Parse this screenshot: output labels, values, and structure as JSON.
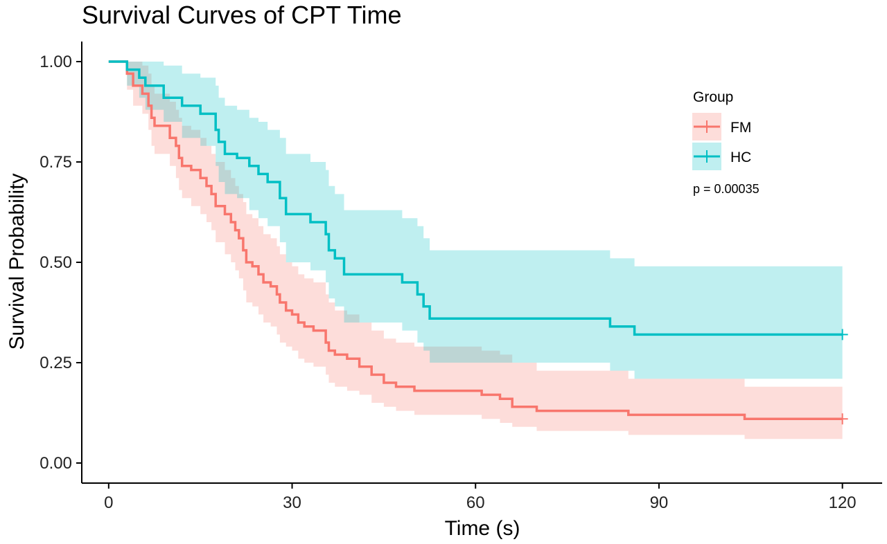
{
  "chart_data": {
    "type": "line",
    "subtype": "kaplan-meier survival curves with confidence bands",
    "title": "Survival Curves of CPT Time",
    "xlabel": "Time (s)",
    "ylabel": "Survival Probability",
    "xlim": [
      -4.4,
      126.5
    ],
    "ylim": [
      -0.05,
      1.05
    ],
    "xticks": [
      0,
      30,
      60,
      90,
      120
    ],
    "xtick_labels": [
      "0",
      "30",
      "60",
      "90",
      "120"
    ],
    "yticks": [
      0.0,
      0.25,
      0.5,
      0.75,
      1.0
    ],
    "ytick_labels": [
      "0.00",
      "0.25",
      "0.50",
      "0.75",
      "1.00"
    ],
    "grid": false,
    "legend": {
      "title": "Group",
      "position": "top-right"
    },
    "annotation": "p = 0.00035",
    "series": [
      {
        "name": "FM",
        "color": "#F8766D",
        "band_color": "#F8766D",
        "steps": [
          [
            0,
            1.0
          ],
          [
            3,
            0.97
          ],
          [
            4,
            0.94
          ],
          [
            5.5,
            0.92
          ],
          [
            6.5,
            0.89
          ],
          [
            7,
            0.86
          ],
          [
            7.5,
            0.84
          ],
          [
            9,
            0.84
          ],
          [
            10,
            0.81
          ],
          [
            11,
            0.79
          ],
          [
            11.5,
            0.76
          ],
          [
            12,
            0.74
          ],
          [
            13.5,
            0.73
          ],
          [
            15,
            0.71
          ],
          [
            16,
            0.69
          ],
          [
            16.8,
            0.67
          ],
          [
            17.5,
            0.64
          ],
          [
            19,
            0.62
          ],
          [
            20,
            0.6
          ],
          [
            20.7,
            0.58
          ],
          [
            21.3,
            0.56
          ],
          [
            22,
            0.53
          ],
          [
            22.5,
            0.5
          ],
          [
            23.5,
            0.49
          ],
          [
            24.5,
            0.47
          ],
          [
            25.3,
            0.45
          ],
          [
            26.5,
            0.44
          ],
          [
            27.5,
            0.42
          ],
          [
            28,
            0.4
          ],
          [
            29,
            0.38
          ],
          [
            30,
            0.37
          ],
          [
            31,
            0.35
          ],
          [
            32,
            0.34
          ],
          [
            33.5,
            0.33
          ],
          [
            35.5,
            0.3
          ],
          [
            36,
            0.28
          ],
          [
            37,
            0.27
          ],
          [
            39,
            0.26
          ],
          [
            41,
            0.24
          ],
          [
            43,
            0.22
          ],
          [
            45,
            0.2
          ],
          [
            47,
            0.19
          ],
          [
            50,
            0.18
          ],
          [
            57,
            0.18
          ],
          [
            61,
            0.17
          ],
          [
            64,
            0.16
          ],
          [
            66,
            0.14
          ],
          [
            70,
            0.13
          ],
          [
            80,
            0.13
          ],
          [
            85,
            0.12
          ],
          [
            104,
            0.11
          ],
          [
            120,
            0.11
          ]
        ],
        "band": [
          [
            0,
            1.0,
            1.0
          ],
          [
            3,
            0.93,
            1.0
          ],
          [
            4,
            0.89,
            1.0
          ],
          [
            5.5,
            0.87,
            0.99
          ],
          [
            6.5,
            0.83,
            0.97
          ],
          [
            7,
            0.79,
            0.94
          ],
          [
            7.5,
            0.77,
            0.92
          ],
          [
            9,
            0.77,
            0.92
          ],
          [
            10,
            0.74,
            0.9
          ],
          [
            11,
            0.71,
            0.88
          ],
          [
            11.5,
            0.68,
            0.86
          ],
          [
            12,
            0.66,
            0.84
          ],
          [
            13.5,
            0.64,
            0.83
          ],
          [
            15,
            0.62,
            0.81
          ],
          [
            16,
            0.6,
            0.79
          ],
          [
            16.8,
            0.58,
            0.77
          ],
          [
            17.5,
            0.55,
            0.75
          ],
          [
            19,
            0.52,
            0.73
          ],
          [
            20,
            0.5,
            0.71
          ],
          [
            20.7,
            0.48,
            0.69
          ],
          [
            21.3,
            0.46,
            0.67
          ],
          [
            22,
            0.43,
            0.65
          ],
          [
            22.5,
            0.4,
            0.62
          ],
          [
            23.5,
            0.39,
            0.61
          ],
          [
            24.5,
            0.37,
            0.59
          ],
          [
            25.3,
            0.35,
            0.57
          ],
          [
            26.5,
            0.34,
            0.56
          ],
          [
            27.5,
            0.32,
            0.54
          ],
          [
            28,
            0.3,
            0.52
          ],
          [
            29,
            0.29,
            0.5
          ],
          [
            30,
            0.28,
            0.49
          ],
          [
            31,
            0.26,
            0.47
          ],
          [
            32,
            0.25,
            0.46
          ],
          [
            33.5,
            0.24,
            0.45
          ],
          [
            35.5,
            0.22,
            0.42
          ],
          [
            36,
            0.2,
            0.4
          ],
          [
            37,
            0.19,
            0.38
          ],
          [
            39,
            0.18,
            0.37
          ],
          [
            41,
            0.17,
            0.35
          ],
          [
            43,
            0.15,
            0.33
          ],
          [
            45,
            0.14,
            0.31
          ],
          [
            47,
            0.13,
            0.3
          ],
          [
            50,
            0.12,
            0.29
          ],
          [
            57,
            0.12,
            0.29
          ],
          [
            61,
            0.11,
            0.28
          ],
          [
            64,
            0.1,
            0.27
          ],
          [
            66,
            0.09,
            0.25
          ],
          [
            70,
            0.08,
            0.23
          ],
          [
            80,
            0.08,
            0.23
          ],
          [
            85,
            0.07,
            0.21
          ],
          [
            104,
            0.06,
            0.19
          ],
          [
            120,
            0.06,
            0.19
          ]
        ]
      },
      {
        "name": "HC",
        "color": "#00BFC4",
        "band_color": "#00BFC4",
        "steps": [
          [
            0,
            1.0
          ],
          [
            2,
            1.0
          ],
          [
            3,
            0.98
          ],
          [
            5,
            0.96
          ],
          [
            6,
            0.94
          ],
          [
            9,
            0.91
          ],
          [
            12,
            0.89
          ],
          [
            15,
            0.87
          ],
          [
            17.5,
            0.83
          ],
          [
            18,
            0.8
          ],
          [
            19,
            0.77
          ],
          [
            21,
            0.76
          ],
          [
            23,
            0.74
          ],
          [
            24.5,
            0.72
          ],
          [
            26,
            0.7
          ],
          [
            28,
            0.66
          ],
          [
            29,
            0.62
          ],
          [
            32,
            0.62
          ],
          [
            33,
            0.6
          ],
          [
            35.5,
            0.57
          ],
          [
            36,
            0.53
          ],
          [
            37,
            0.51
          ],
          [
            38.5,
            0.47
          ],
          [
            43,
            0.47
          ],
          [
            47,
            0.47
          ],
          [
            48,
            0.45
          ],
          [
            50.5,
            0.42
          ],
          [
            51.5,
            0.39
          ],
          [
            52.5,
            0.36
          ],
          [
            82,
            0.34
          ],
          [
            86,
            0.32
          ],
          [
            120,
            0.32
          ]
        ],
        "band": [
          [
            0,
            1.0,
            1.0
          ],
          [
            2,
            1.0,
            1.0
          ],
          [
            3,
            0.94,
            1.0
          ],
          [
            5,
            0.91,
            1.0
          ],
          [
            6,
            0.88,
            1.0
          ],
          [
            9,
            0.85,
            0.99
          ],
          [
            12,
            0.81,
            0.97
          ],
          [
            15,
            0.79,
            0.96
          ],
          [
            17.5,
            0.74,
            0.94
          ],
          [
            18,
            0.7,
            0.91
          ],
          [
            19,
            0.67,
            0.89
          ],
          [
            21,
            0.66,
            0.88
          ],
          [
            23,
            0.63,
            0.86
          ],
          [
            24.5,
            0.61,
            0.85
          ],
          [
            26,
            0.59,
            0.83
          ],
          [
            28,
            0.55,
            0.81
          ],
          [
            29,
            0.5,
            0.77
          ],
          [
            32,
            0.5,
            0.77
          ],
          [
            33,
            0.48,
            0.75
          ],
          [
            35.5,
            0.45,
            0.73
          ],
          [
            36,
            0.41,
            0.69
          ],
          [
            37,
            0.39,
            0.67
          ],
          [
            38.5,
            0.35,
            0.63
          ],
          [
            43,
            0.35,
            0.63
          ],
          [
            47,
            0.35,
            0.63
          ],
          [
            48,
            0.33,
            0.61
          ],
          [
            50.5,
            0.3,
            0.59
          ],
          [
            51.5,
            0.28,
            0.56
          ],
          [
            52.5,
            0.25,
            0.53
          ],
          [
            82,
            0.23,
            0.51
          ],
          [
            86,
            0.21,
            0.49
          ],
          [
            120,
            0.21,
            0.49
          ]
        ]
      }
    ]
  }
}
